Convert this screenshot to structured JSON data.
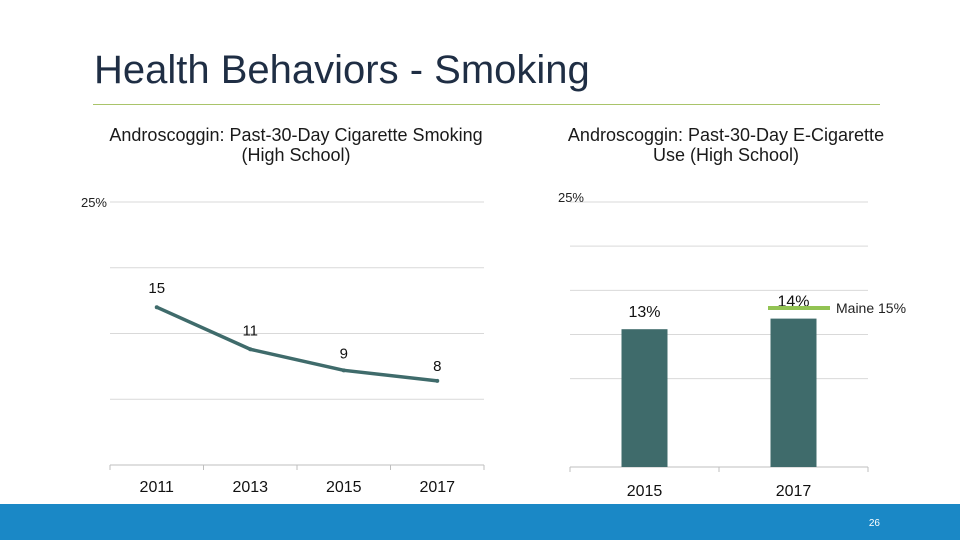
{
  "slide": {
    "title": "Health Behaviors - Smoking",
    "page_number": "26",
    "colors": {
      "accent": "#a9c46a",
      "series": "#3f6b6b",
      "maine_line": "#92c353",
      "footer": "#1a88c6"
    }
  },
  "chart_data": [
    {
      "type": "line",
      "title": "Androscoggin: Past-30-Day Cigarette Smoking (High School)",
      "categories": [
        "2011",
        "2013",
        "2015",
        "2017"
      ],
      "values": [
        15,
        11,
        9,
        8
      ],
      "data_labels": [
        "15",
        "11",
        "9",
        "8"
      ],
      "ylim": [
        0,
        25
      ],
      "ytick_label": "25%",
      "gridlines": 4
    },
    {
      "type": "bar",
      "title": "Androscoggin: Past-30-Day E-Cigarette Use (High School)",
      "categories": [
        "2015",
        "2017"
      ],
      "values": [
        13,
        14
      ],
      "data_labels": [
        "13%",
        "14%"
      ],
      "ylim": [
        0,
        25
      ],
      "ytick_label": "25%",
      "gridlines": 5,
      "reference_line": {
        "label": "Maine 15%",
        "value": 15
      }
    }
  ]
}
